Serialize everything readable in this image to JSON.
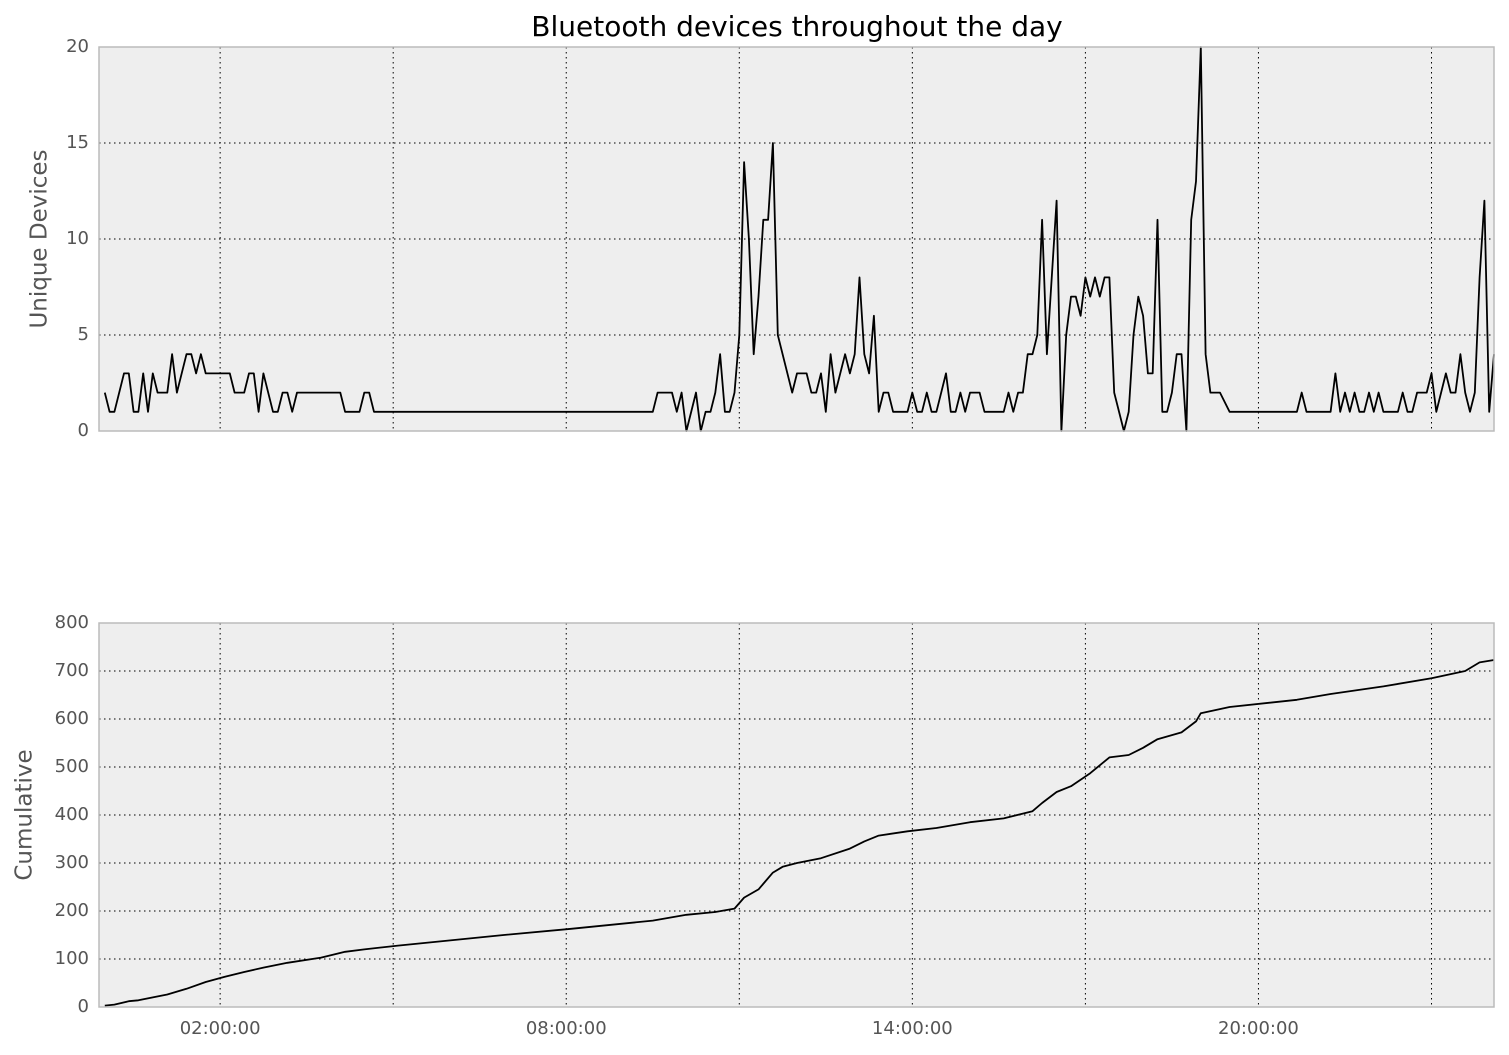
{
  "chart_data": [
    {
      "type": "line",
      "title": "Bluetooth devices throughout the day",
      "ylabel": "Unique Devices",
      "color": "#000000",
      "grid": true,
      "xlim": [
        -6,
        1445
      ],
      "ylim": [
        0,
        20
      ],
      "yticks": [
        0,
        5,
        10,
        15,
        20
      ],
      "xgrid": [
        120,
        300,
        480,
        660,
        840,
        1020,
        1200,
        1380
      ],
      "x": [
        0,
        5,
        10,
        20,
        25,
        30,
        35,
        40,
        45,
        50,
        55,
        65,
        70,
        75,
        85,
        90,
        95,
        100,
        105,
        130,
        135,
        145,
        150,
        155,
        160,
        165,
        175,
        180,
        185,
        190,
        195,
        200,
        245,
        250,
        265,
        270,
        275,
        280,
        570,
        575,
        590,
        595,
        600,
        605,
        615,
        620,
        625,
        630,
        635,
        640,
        645,
        650,
        655,
        660,
        665,
        670,
        675,
        680,
        685,
        690,
        695,
        700,
        715,
        720,
        730,
        735,
        740,
        745,
        750,
        755,
        760,
        770,
        775,
        780,
        785,
        790,
        795,
        800,
        805,
        810,
        815,
        820,
        835,
        840,
        845,
        850,
        855,
        860,
        865,
        875,
        880,
        885,
        890,
        895,
        900,
        910,
        915,
        935,
        940,
        945,
        950,
        955,
        960,
        965,
        970,
        975,
        980,
        990,
        995,
        1000,
        1005,
        1010,
        1015,
        1020,
        1025,
        1030,
        1035,
        1040,
        1045,
        1050,
        1060,
        1065,
        1070,
        1075,
        1080,
        1085,
        1090,
        1095,
        1100,
        1105,
        1110,
        1115,
        1120,
        1125,
        1130,
        1135,
        1140,
        1145,
        1150,
        1160,
        1170,
        1240,
        1245,
        1250,
        1275,
        1280,
        1285,
        1290,
        1295,
        1300,
        1305,
        1310,
        1315,
        1320,
        1325,
        1330,
        1345,
        1350,
        1355,
        1360,
        1365,
        1375,
        1380,
        1385,
        1390,
        1395,
        1400,
        1405,
        1410,
        1415,
        1420,
        1425,
        1430,
        1435,
        1440,
        1445
      ],
      "values": [
        2,
        1,
        1,
        3,
        3,
        1,
        1,
        3,
        1,
        3,
        2,
        2,
        4,
        2,
        4,
        4,
        3,
        4,
        3,
        3,
        2,
        2,
        3,
        3,
        1,
        3,
        1,
        1,
        2,
        2,
        1,
        2,
        2,
        1,
        1,
        2,
        2,
        1,
        1,
        2,
        2,
        1,
        2,
        0,
        2,
        0,
        1,
        1,
        2,
        4,
        1,
        1,
        2,
        5,
        14,
        10,
        4,
        7,
        11,
        11,
        15,
        5,
        2,
        3,
        3,
        2,
        2,
        3,
        1,
        4,
        2,
        4,
        3,
        4,
        8,
        4,
        3,
        6,
        1,
        2,
        2,
        1,
        1,
        2,
        1,
        1,
        2,
        1,
        1,
        3,
        1,
        1,
        2,
        1,
        2,
        2,
        1,
        1,
        2,
        1,
        2,
        2,
        4,
        4,
        5,
        11,
        4,
        12,
        0,
        5,
        7,
        7,
        6,
        8,
        7,
        8,
        7,
        8,
        8,
        2,
        0,
        1,
        5,
        7,
        6,
        3,
        3,
        11,
        1,
        1,
        2,
        4,
        4,
        0,
        11,
        13,
        20,
        4,
        2,
        2,
        1,
        1,
        2,
        1,
        1,
        3,
        1,
        2,
        1,
        2,
        1,
        1,
        2,
        1,
        2,
        1,
        1,
        2,
        1,
        1,
        2,
        2,
        3,
        1,
        2,
        3,
        2,
        2,
        4,
        2,
        1,
        2,
        8,
        12,
        1,
        4
      ]
    },
    {
      "type": "line",
      "ylabel": "Cumulative",
      "color": "#000000",
      "grid": true,
      "xlim": [
        -6,
        1445
      ],
      "ylim": [
        0,
        800
      ],
      "yticks": [
        0,
        100,
        200,
        300,
        400,
        500,
        600,
        700,
        800
      ],
      "xgrid": [
        120,
        300,
        480,
        660,
        840,
        1020,
        1200,
        1380
      ],
      "xticks": [
        {
          "value": 120,
          "label": "02:00:00"
        },
        {
          "value": 480,
          "label": "08:00:00"
        },
        {
          "value": 840,
          "label": "14:00:00"
        },
        {
          "value": 1200,
          "label": "20:00:00"
        }
      ],
      "x": [
        0,
        10,
        25,
        35,
        50,
        65,
        85,
        105,
        125,
        145,
        165,
        190,
        225,
        250,
        270,
        305,
        415,
        485,
        570,
        605,
        635,
        655,
        665,
        680,
        695,
        705,
        720,
        745,
        775,
        790,
        805,
        835,
        865,
        900,
        935,
        965,
        975,
        990,
        1005,
        1025,
        1045,
        1065,
        1080,
        1095,
        1120,
        1135,
        1140,
        1170,
        1240,
        1275,
        1330,
        1380,
        1415,
        1430,
        1445
      ],
      "values": [
        3,
        5,
        12,
        14,
        20,
        26,
        38,
        52,
        63,
        73,
        82,
        92,
        103,
        115,
        120,
        128,
        150,
        163,
        180,
        192,
        198,
        205,
        228,
        245,
        280,
        292,
        300,
        310,
        330,
        345,
        357,
        366,
        373,
        385,
        393,
        408,
        425,
        448,
        460,
        487,
        520,
        525,
        540,
        558,
        572,
        595,
        612,
        625,
        640,
        652,
        668,
        685,
        700,
        718,
        723
      ]
    }
  ]
}
